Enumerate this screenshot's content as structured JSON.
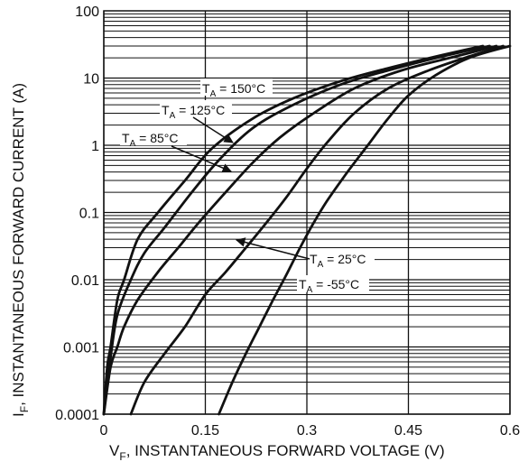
{
  "chart_data": {
    "type": "line",
    "xlabel": {
      "symbol": "V",
      "sub": "F",
      "text": ", INSTANTANEOUS FORWARD VOLTAGE (V)"
    },
    "ylabel": {
      "symbol": "I",
      "sub": "F",
      "text": ", INSTANTANEOUS FORWARD CURRENT (A)"
    },
    "xlim": [
      0,
      0.6
    ],
    "ylim": [
      0.0001,
      100
    ],
    "yscale": "log",
    "grid": true,
    "x_ticks": [
      {
        "value": 0,
        "label": "0"
      },
      {
        "value": 0.15,
        "label": "0.15"
      },
      {
        "value": 0.3,
        "label": "0.3"
      },
      {
        "value": 0.45,
        "label": "0.45"
      },
      {
        "value": 0.6,
        "label": "0.6"
      }
    ],
    "y_ticks": [
      {
        "value": 100,
        "label": "100"
      },
      {
        "value": 10,
        "label": "10"
      },
      {
        "value": 1,
        "label": "1"
      },
      {
        "value": 0.1,
        "label": "0.1"
      },
      {
        "value": 0.01,
        "label": "0.01"
      },
      {
        "value": 0.001,
        "label": "0.001"
      },
      {
        "value": 0.0001,
        "label": "0.0001"
      }
    ],
    "series": [
      {
        "id": "t150",
        "label": {
          "main": "T",
          "sub": "A",
          "rest": " = 150°C"
        },
        "x": [
          0,
          0.005,
          0.01,
          0.02,
          0.03,
          0.05,
          0.08,
          0.12,
          0.16,
          0.22,
          0.28,
          0.35,
          0.42,
          0.5,
          0.56
        ],
        "y": [
          0.0001,
          0.0005,
          0.001,
          0.005,
          0.01,
          0.04,
          0.1,
          0.3,
          0.9,
          2.5,
          5,
          9,
          14,
          22,
          30
        ]
      },
      {
        "id": "t125",
        "label": {
          "main": "T",
          "sub": "A",
          "rest": " = 125°C"
        },
        "x": [
          0,
          0.005,
          0.01,
          0.02,
          0.04,
          0.06,
          0.09,
          0.13,
          0.17,
          0.22,
          0.28,
          0.35,
          0.42,
          0.5,
          0.57
        ],
        "y": [
          0.0001,
          0.0003,
          0.0007,
          0.003,
          0.01,
          0.025,
          0.06,
          0.2,
          0.6,
          1.8,
          4,
          8,
          13,
          21,
          30
        ]
      },
      {
        "id": "t85",
        "label": {
          "main": "T",
          "sub": "A",
          "rest": " = 85°C"
        },
        "x": [
          0,
          0.01,
          0.02,
          0.03,
          0.05,
          0.08,
          0.11,
          0.14,
          0.18,
          0.22,
          0.26,
          0.31,
          0.37,
          0.44,
          0.52,
          0.58
        ],
        "y": [
          0.0001,
          0.0005,
          0.001,
          0.002,
          0.005,
          0.013,
          0.03,
          0.07,
          0.2,
          0.55,
          1.3,
          3,
          7,
          13,
          21,
          30
        ]
      },
      {
        "id": "t25",
        "label": {
          "main": "T",
          "sub": "A",
          "rest": " = 25°C"
        },
        "x": [
          0.04,
          0.06,
          0.09,
          0.12,
          0.15,
          0.18,
          0.21,
          0.24,
          0.27,
          0.3,
          0.33,
          0.37,
          0.42,
          0.48,
          0.54,
          0.59
        ],
        "y": [
          0.0001,
          0.0003,
          0.0008,
          0.002,
          0.006,
          0.013,
          0.03,
          0.07,
          0.17,
          0.45,
          1.1,
          3,
          7,
          13,
          21,
          30
        ]
      },
      {
        "id": "tm55",
        "label": {
          "main": "T",
          "sub": "A",
          "rest": " = -55°C"
        },
        "x": [
          0.17,
          0.19,
          0.21,
          0.23,
          0.25,
          0.27,
          0.29,
          0.31,
          0.33,
          0.36,
          0.39,
          0.42,
          0.45,
          0.49,
          0.54,
          0.6
        ],
        "y": [
          0.0001,
          0.0003,
          0.0008,
          0.002,
          0.005,
          0.012,
          0.03,
          0.07,
          0.15,
          0.4,
          1,
          2.5,
          5.5,
          11,
          20,
          30
        ]
      }
    ]
  }
}
